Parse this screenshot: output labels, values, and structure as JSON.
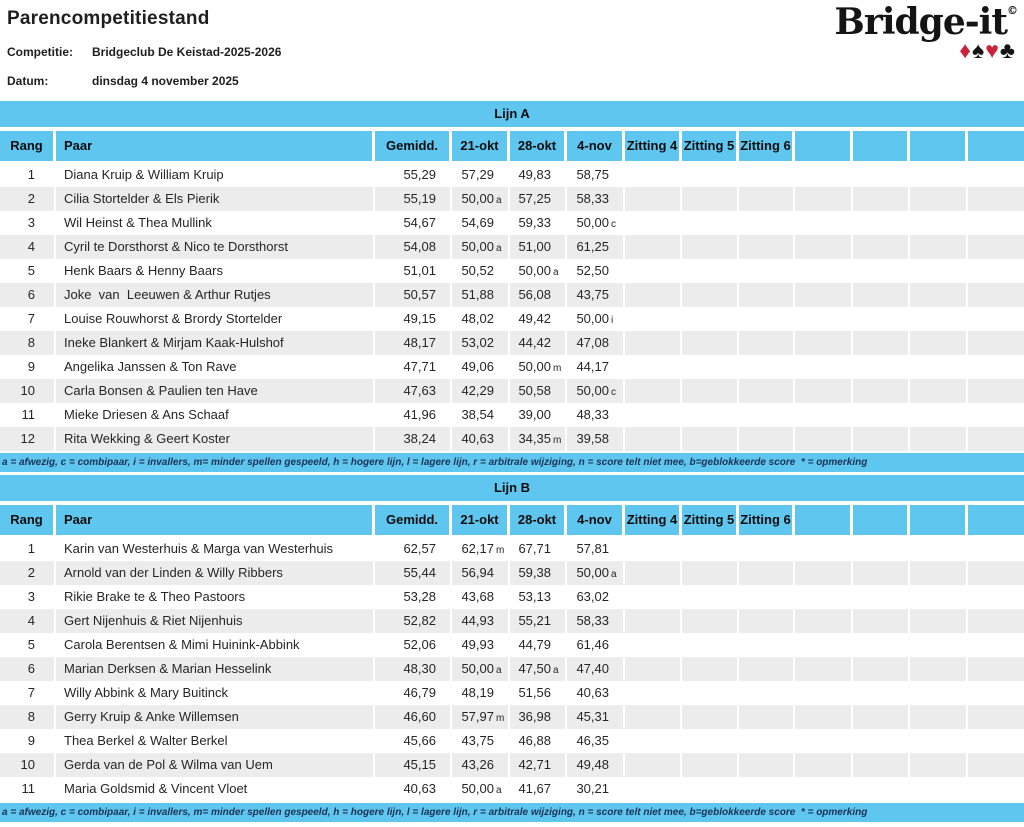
{
  "page": {
    "title": "Parencompetitiestand",
    "competitie_label": "Competitie:",
    "competitie_value": "Bridgeclub De Keistad-2025-2026",
    "datum_label": "Datum:",
    "datum_value": "dinsdag 4 november 2025"
  },
  "logo": {
    "text": "Bridge-it",
    "copyright": "©",
    "suits": [
      {
        "name": "diamond-suit-icon",
        "glyph": "♦",
        "color": "#c9223a"
      },
      {
        "name": "spade-suit-icon",
        "glyph": "♠",
        "color": "#141414"
      },
      {
        "name": "heart-suit-icon",
        "glyph": "♥",
        "color": "#c9223a"
      },
      {
        "name": "club-suit-icon",
        "glyph": "♣",
        "color": "#141414"
      }
    ]
  },
  "colors": {
    "band_blue": "#5ec6ef",
    "row_alt_gray": "#ececec",
    "footnote_text": "#1c3256"
  },
  "columns": [
    "Rang",
    "Paar",
    "Gemidd.",
    "21-okt",
    "28-okt",
    "4-nov",
    "Zitting 4",
    "Zitting 5",
    "Zitting 6",
    "",
    "",
    "",
    ""
  ],
  "footnote": "a = afwezig, c = combipaar, i = invallers, m= minder spellen gespeeld, h = hogere lijn, l = lagere lijn, r = arbitrale wijziging, n = score telt niet mee, b=geblokkeerde score  * = opmerking",
  "sections": [
    {
      "title": "Lijn A",
      "rows": [
        {
          "rang": "1",
          "paar": "Diana Kruip & William Kruip",
          "scores": [
            [
              "55,29",
              ""
            ],
            [
              "57,29",
              ""
            ],
            [
              "49,83",
              ""
            ],
            [
              "58,75",
              ""
            ]
          ]
        },
        {
          "rang": "2",
          "paar": "Cilia Stortelder & Els Pierik",
          "scores": [
            [
              "55,19",
              ""
            ],
            [
              "50,00",
              "a"
            ],
            [
              "57,25",
              ""
            ],
            [
              "58,33",
              ""
            ]
          ]
        },
        {
          "rang": "3",
          "paar": "Wil Heinst & Thea Mullink",
          "scores": [
            [
              "54,67",
              ""
            ],
            [
              "54,69",
              ""
            ],
            [
              "59,33",
              ""
            ],
            [
              "50,00",
              "c"
            ]
          ]
        },
        {
          "rang": "4",
          "paar": "Cyril te Dorsthorst & Nico te Dorsthorst",
          "scores": [
            [
              "54,08",
              ""
            ],
            [
              "50,00",
              "a"
            ],
            [
              "51,00",
              ""
            ],
            [
              "61,25",
              ""
            ]
          ]
        },
        {
          "rang": "5",
          "paar": "Henk Baars & Henny Baars",
          "scores": [
            [
              "51,01",
              ""
            ],
            [
              "50,52",
              ""
            ],
            [
              "50,00",
              "a"
            ],
            [
              "52,50",
              ""
            ]
          ]
        },
        {
          "rang": "6",
          "paar": "Joke  van  Leeuwen & Arthur Rutjes",
          "scores": [
            [
              "50,57",
              ""
            ],
            [
              "51,88",
              ""
            ],
            [
              "56,08",
              ""
            ],
            [
              "43,75",
              ""
            ]
          ]
        },
        {
          "rang": "7",
          "paar": "Louise Rouwhorst & Brordy Stortelder",
          "scores": [
            [
              "49,15",
              ""
            ],
            [
              "48,02",
              ""
            ],
            [
              "49,42",
              ""
            ],
            [
              "50,00",
              "i"
            ]
          ]
        },
        {
          "rang": "8",
          "paar": "Ineke Blankert & Mirjam Kaak-Hulshof",
          "scores": [
            [
              "48,17",
              ""
            ],
            [
              "53,02",
              ""
            ],
            [
              "44,42",
              ""
            ],
            [
              "47,08",
              ""
            ]
          ]
        },
        {
          "rang": "9",
          "paar": "Angelika Janssen & Ton Rave",
          "scores": [
            [
              "47,71",
              ""
            ],
            [
              "49,06",
              ""
            ],
            [
              "50,00",
              "m"
            ],
            [
              "44,17",
              ""
            ]
          ]
        },
        {
          "rang": "10",
          "paar": "Carla Bonsen & Paulien ten Have",
          "scores": [
            [
              "47,63",
              ""
            ],
            [
              "42,29",
              ""
            ],
            [
              "50,58",
              ""
            ],
            [
              "50,00",
              "c"
            ]
          ]
        },
        {
          "rang": "11",
          "paar": "Mieke Driesen & Ans Schaaf",
          "scores": [
            [
              "41,96",
              ""
            ],
            [
              "38,54",
              ""
            ],
            [
              "39,00",
              ""
            ],
            [
              "48,33",
              ""
            ]
          ]
        },
        {
          "rang": "12",
          "paar": "Rita Wekking & Geert Koster",
          "scores": [
            [
              "38,24",
              ""
            ],
            [
              "40,63",
              ""
            ],
            [
              "34,35",
              "m"
            ],
            [
              "39,58",
              ""
            ]
          ]
        }
      ]
    },
    {
      "title": "Lijn B",
      "rows": [
        {
          "rang": "1",
          "paar": "Karin van Westerhuis & Marga van Westerhuis",
          "scores": [
            [
              "62,57",
              ""
            ],
            [
              "62,17",
              "m"
            ],
            [
              "67,71",
              ""
            ],
            [
              "57,81",
              ""
            ]
          ]
        },
        {
          "rang": "2",
          "paar": "Arnold van der Linden & Willy Ribbers",
          "scores": [
            [
              "55,44",
              ""
            ],
            [
              "56,94",
              ""
            ],
            [
              "59,38",
              ""
            ],
            [
              "50,00",
              "a"
            ]
          ]
        },
        {
          "rang": "3",
          "paar": "Rikie Brake te & Theo Pastoors",
          "scores": [
            [
              "53,28",
              ""
            ],
            [
              "43,68",
              ""
            ],
            [
              "53,13",
              ""
            ],
            [
              "63,02",
              ""
            ]
          ]
        },
        {
          "rang": "4",
          "paar": "Gert Nijenhuis & Riet Nijenhuis",
          "scores": [
            [
              "52,82",
              ""
            ],
            [
              "44,93",
              ""
            ],
            [
              "55,21",
              ""
            ],
            [
              "58,33",
              ""
            ]
          ]
        },
        {
          "rang": "5",
          "paar": "Carola Berentsen & Mimi Huinink-Abbink",
          "scores": [
            [
              "52,06",
              ""
            ],
            [
              "49,93",
              ""
            ],
            [
              "44,79",
              ""
            ],
            [
              "61,46",
              ""
            ]
          ]
        },
        {
          "rang": "6",
          "paar": "Marian Derksen & Marian Hesselink",
          "scores": [
            [
              "48,30",
              ""
            ],
            [
              "50,00",
              "a"
            ],
            [
              "47,50",
              "a"
            ],
            [
              "47,40",
              ""
            ]
          ]
        },
        {
          "rang": "7",
          "paar": "Willy Abbink & Mary Buitinck",
          "scores": [
            [
              "46,79",
              ""
            ],
            [
              "48,19",
              ""
            ],
            [
              "51,56",
              ""
            ],
            [
              "40,63",
              ""
            ]
          ]
        },
        {
          "rang": "8",
          "paar": "Gerry Kruip & Anke Willemsen",
          "scores": [
            [
              "46,60",
              ""
            ],
            [
              "57,97",
              "m"
            ],
            [
              "36,98",
              ""
            ],
            [
              "45,31",
              ""
            ]
          ]
        },
        {
          "rang": "9",
          "paar": "Thea Berkel & Walter Berkel",
          "scores": [
            [
              "45,66",
              ""
            ],
            [
              "43,75",
              ""
            ],
            [
              "46,88",
              ""
            ],
            [
              "46,35",
              ""
            ]
          ]
        },
        {
          "rang": "10",
          "paar": "Gerda van de Pol & Wilma van Uem",
          "scores": [
            [
              "45,15",
              ""
            ],
            [
              "43,26",
              ""
            ],
            [
              "42,71",
              ""
            ],
            [
              "49,48",
              ""
            ]
          ]
        },
        {
          "rang": "11",
          "paar": "Maria Goldsmid & Vincent Vloet",
          "scores": [
            [
              "40,63",
              ""
            ],
            [
              "50,00",
              "a"
            ],
            [
              "41,67",
              ""
            ],
            [
              "30,21",
              ""
            ]
          ]
        }
      ]
    }
  ]
}
